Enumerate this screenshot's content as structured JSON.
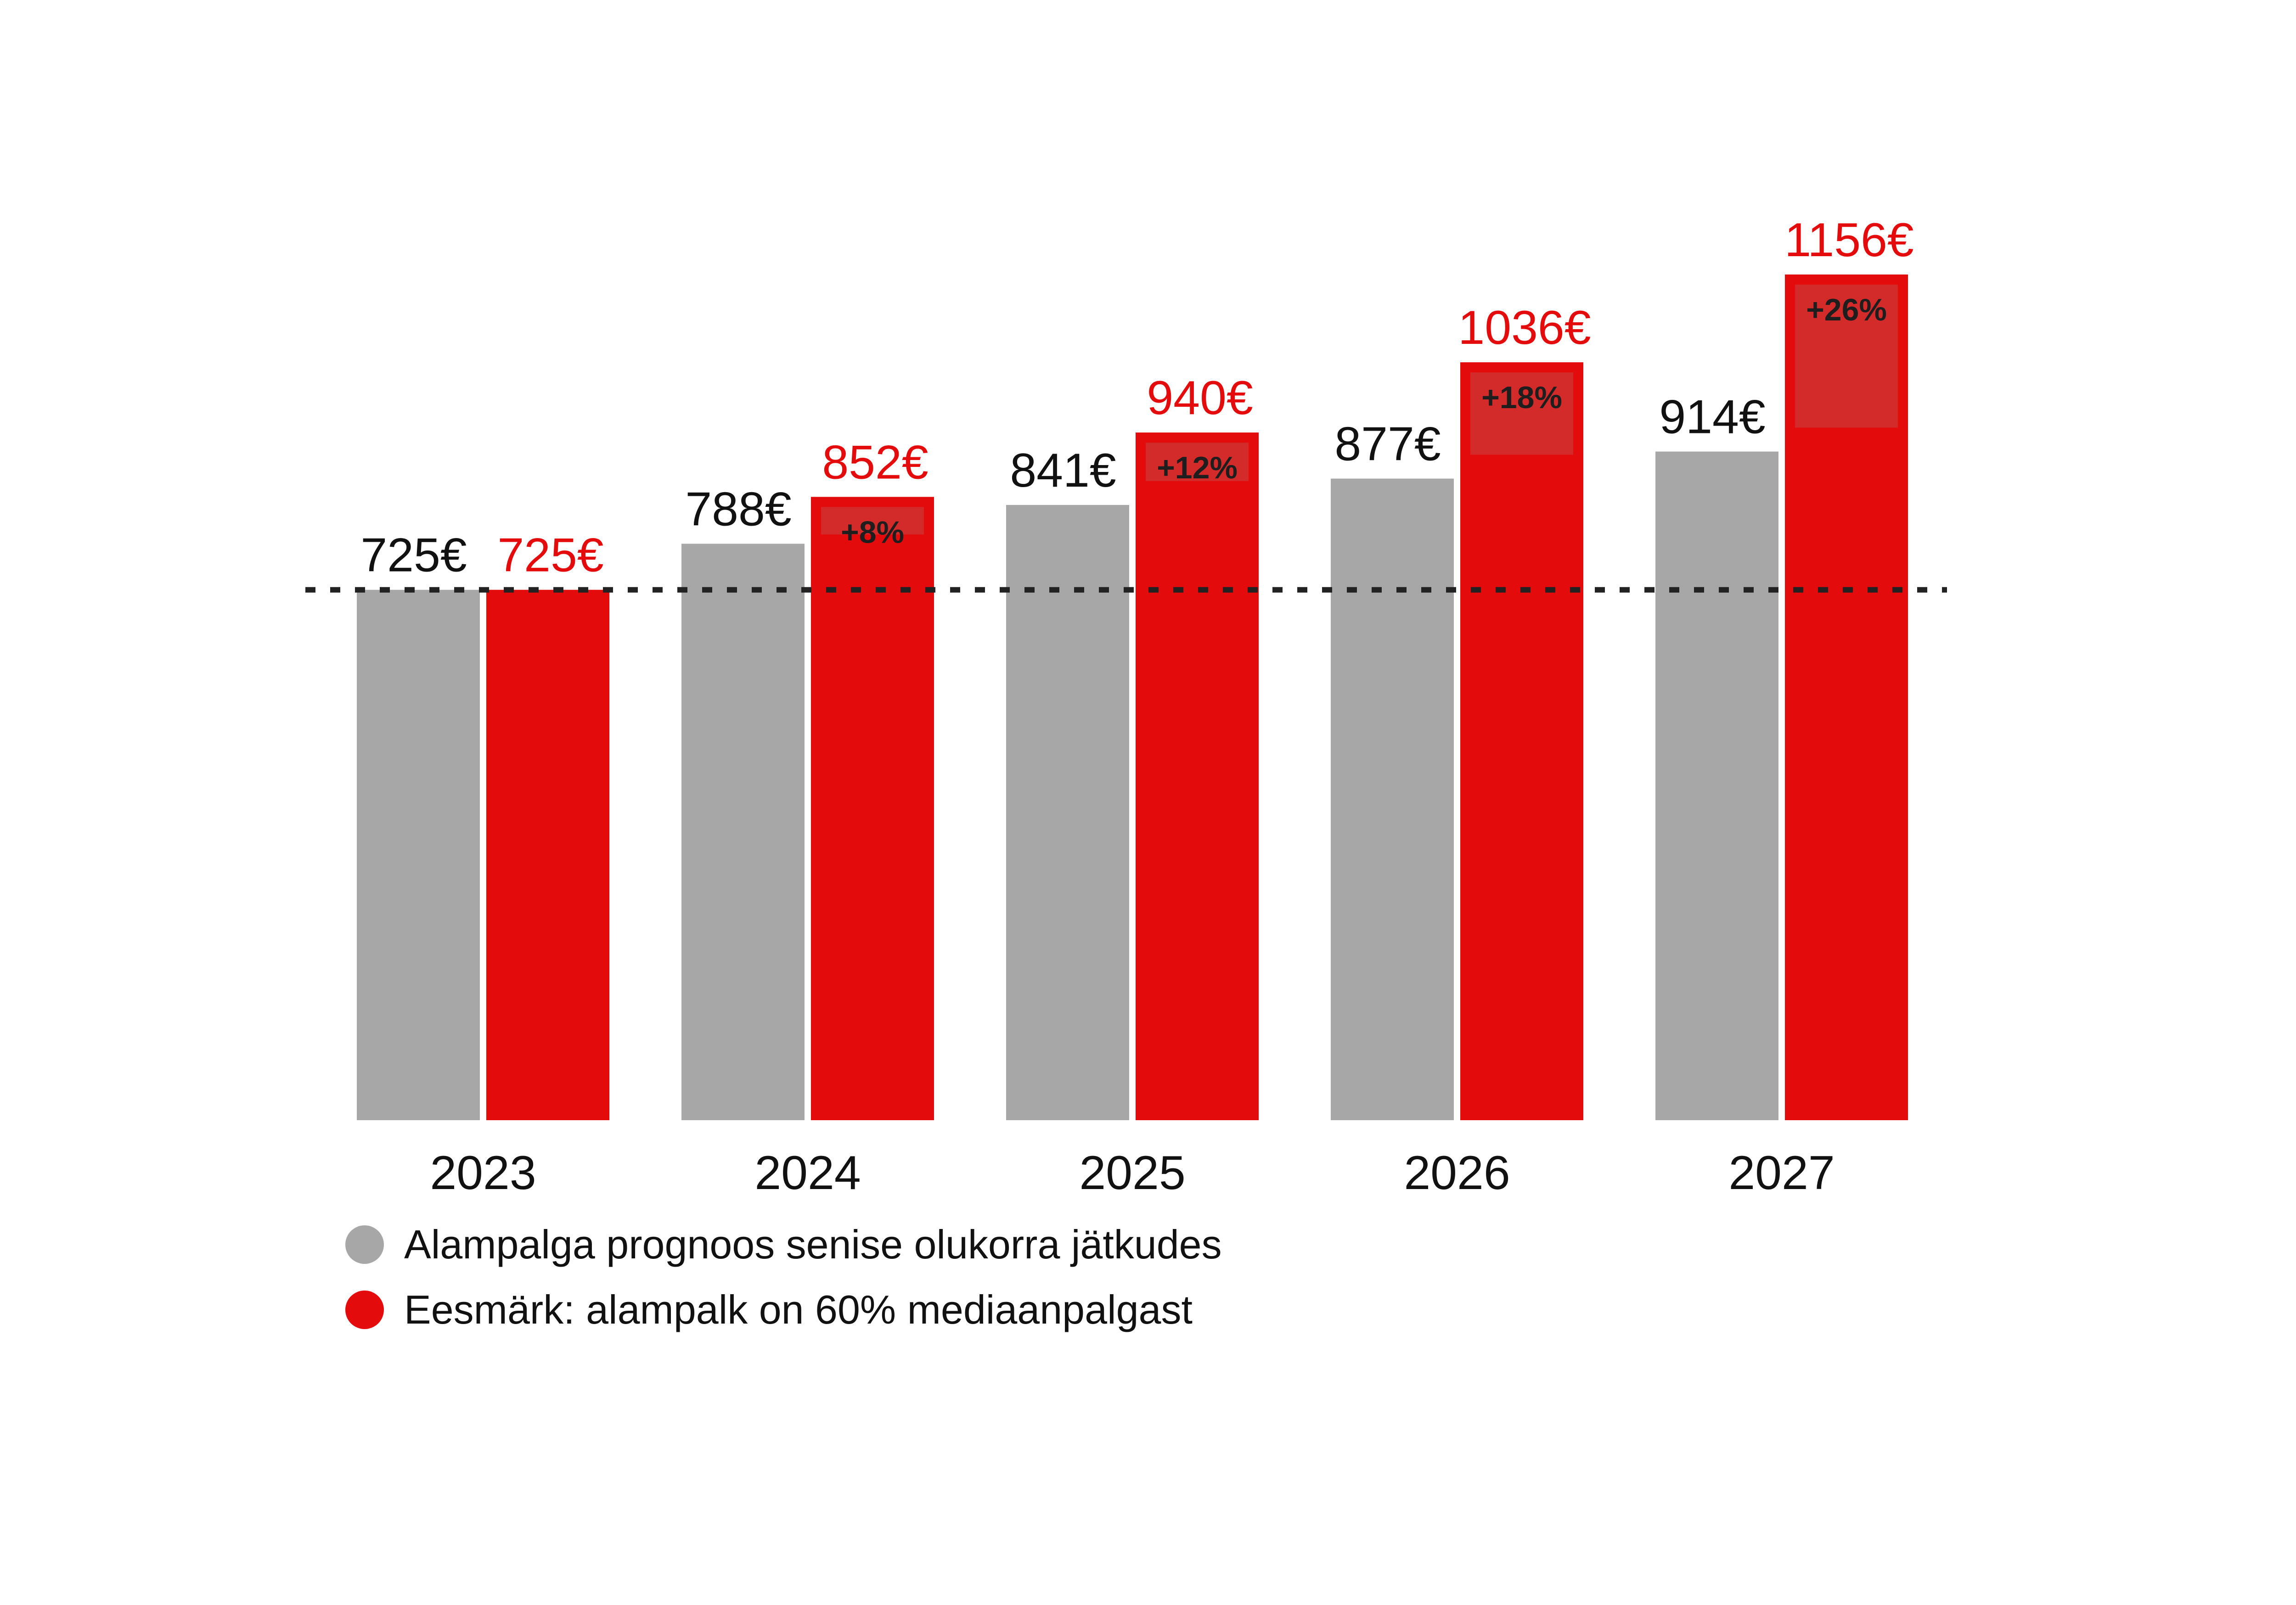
{
  "colors": {
    "forecast": "#a8a7a7",
    "target": "#e30b0b",
    "increase_box": "#d32a2a",
    "baseline": "#222222",
    "text": "#111111"
  },
  "legend": [
    {
      "label": "Alampalga prognoos senise olukorra jätkudes",
      "color": "#a8a7a7"
    },
    {
      "label": "Eesmärk: alampalk on 60% mediaanpalgast",
      "color": "#e30b0b"
    }
  ],
  "chart_data": {
    "type": "bar",
    "categories": [
      "2023",
      "2024",
      "2025",
      "2026",
      "2027"
    ],
    "series": [
      {
        "name": "Alampalga prognoos senise olukorra jätkudes",
        "values": [
          725,
          788,
          841,
          877,
          914
        ],
        "labels": [
          "725€",
          "788€",
          "841€",
          "877€",
          "914€"
        ]
      },
      {
        "name": "Eesmärk: alampalk on 60% mediaanpalgast",
        "values": [
          725,
          852,
          940,
          1036,
          1156
        ],
        "labels": [
          "725€",
          "852€",
          "940€",
          "1036€",
          "1156€"
        ],
        "increase_labels": [
          "",
          "+8%",
          "+12%",
          "+18%",
          "+26%"
        ]
      }
    ],
    "reference_line": {
      "value": 725,
      "style": "dotted"
    },
    "ylim": [
      0,
      1156
    ],
    "grid": false,
    "legend_position": "bottom-left",
    "xlabel": "",
    "ylabel": ""
  }
}
